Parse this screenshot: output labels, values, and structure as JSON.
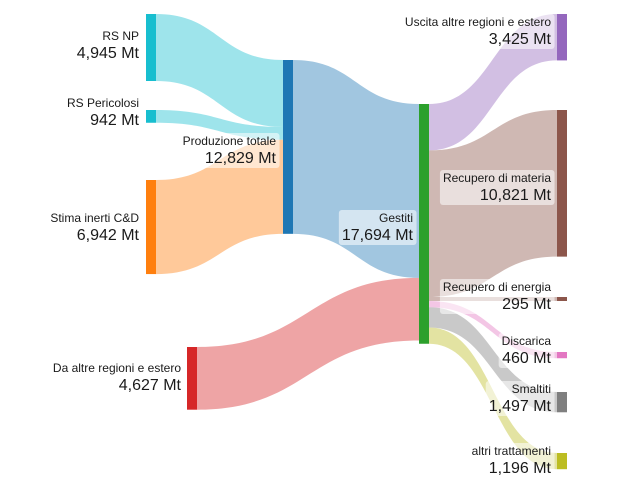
{
  "nodes": [
    {
      "id": "rs_np",
      "name": "RS NP",
      "value_label": "4,945 Mt",
      "color": "#17becf"
    },
    {
      "id": "rs_per",
      "name": "RS Pericolosi",
      "value_label": "942 Mt",
      "color": "#17becf"
    },
    {
      "id": "inerti",
      "name": "Stima inerti C&D",
      "value_label": "6,942 Mt",
      "color": "#ff7f0e"
    },
    {
      "id": "altre_in",
      "name": "Da altre regioni e estero",
      "value_label": "4,627 Mt",
      "color": "#d62728"
    },
    {
      "id": "prod",
      "name": "Produzione totale",
      "value_label": "12,829 Mt",
      "color": "#1f77b4"
    },
    {
      "id": "gestiti",
      "name": "Gestiti",
      "value_label": "17,694 Mt",
      "color": "#2ca02c"
    },
    {
      "id": "uscita",
      "name": "Uscita altre regioni e estero",
      "value_label": "3,425 Mt",
      "color": "#9467bd"
    },
    {
      "id": "materia",
      "name": "Recupero di materia",
      "value_label": "10,821 Mt",
      "color": "#8c564b"
    },
    {
      "id": "energia",
      "name": "Recupero di energia",
      "value_label": "295 Mt",
      "color": "#8c564b"
    },
    {
      "id": "discarica",
      "name": "Discarica",
      "value_label": "460 Mt",
      "color": "#e377c2"
    },
    {
      "id": "smaltiti",
      "name": "Smaltiti",
      "value_label": "1,497 Mt",
      "color": "#7f7f7f"
    },
    {
      "id": "altri",
      "name": "altri trattamenti",
      "value_label": "1,196 Mt",
      "color": "#bcbd22"
    }
  ],
  "links": [
    {
      "source": "rs_np",
      "target": "prod",
      "value": 4.945,
      "color": "#17becf"
    },
    {
      "source": "rs_per",
      "target": "prod",
      "value": 0.942,
      "color": "#17becf"
    },
    {
      "source": "inerti",
      "target": "prod",
      "value": 6.942,
      "color": "#ff7f0e"
    },
    {
      "source": "prod",
      "target": "gestiti",
      "value": 12.829,
      "color": "#1f77b4"
    },
    {
      "source": "altre_in",
      "target": "gestiti",
      "value": 4.627,
      "color": "#d62728"
    },
    {
      "source": "gestiti",
      "target": "uscita",
      "value": 3.425,
      "color": "#9467bd"
    },
    {
      "source": "gestiti",
      "target": "materia",
      "value": 10.821,
      "color": "#8c564b"
    },
    {
      "source": "gestiti",
      "target": "energia",
      "value": 0.295,
      "color": "#8c564b"
    },
    {
      "source": "gestiti",
      "target": "discarica",
      "value": 0.46,
      "color": "#e377c2"
    },
    {
      "source": "gestiti",
      "target": "smaltiti",
      "value": 1.497,
      "color": "#7f7f7f"
    },
    {
      "source": "gestiti",
      "target": "altri",
      "value": 1.196,
      "color": "#bcbd22"
    }
  ]
}
